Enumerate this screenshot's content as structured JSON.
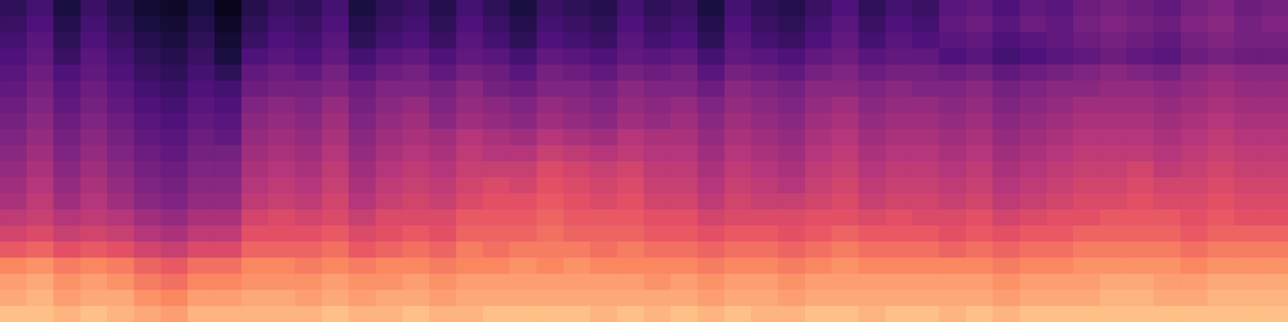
{
  "chart_data": {
    "type": "heatmap",
    "tick_labels": false,
    "value_range": [
      -80,
      0
    ],
    "cells": [
      [
        -66,
        -62,
        -70,
        -64,
        -68,
        -72,
        -74,
        -70,
        -76,
        -68,
        -64,
        -66,
        -62,
        -70,
        -66,
        -64,
        -68,
        -62,
        -66,
        -70,
        -64,
        -66,
        -68,
        -62,
        -66,
        -64,
        -70,
        -62,
        -66,
        -68,
        -64,
        -60,
        -66,
        -62,
        -64,
        -58,
        -56,
        -60,
        -56,
        -58,
        -54,
        -52,
        -54,
        -56,
        -52,
        -50,
        -54,
        -52
      ],
      [
        -64,
        -60,
        -68,
        -62,
        -66,
        -70,
        -72,
        -68,
        -74,
        -66,
        -62,
        -64,
        -60,
        -68,
        -64,
        -62,
        -66,
        -60,
        -64,
        -68,
        -62,
        -64,
        -66,
        -60,
        -64,
        -62,
        -68,
        -60,
        -64,
        -66,
        -62,
        -58,
        -64,
        -60,
        -62,
        -56,
        -54,
        -58,
        -54,
        -56,
        -52,
        -50,
        -52,
        -54,
        -50,
        -48,
        -52,
        -50
      ],
      [
        -62,
        -58,
        -66,
        -60,
        -64,
        -68,
        -70,
        -66,
        -72,
        -64,
        -60,
        -62,
        -58,
        -66,
        -62,
        -60,
        -64,
        -58,
        -62,
        -66,
        -60,
        -62,
        -64,
        -58,
        -62,
        -60,
        -66,
        -58,
        -62,
        -64,
        -60,
        -56,
        -62,
        -58,
        -60,
        -58,
        -56,
        -60,
        -58,
        -56,
        -54,
        -52,
        -54,
        -56,
        -52,
        -50,
        -52,
        -52
      ],
      [
        -60,
        -56,
        -64,
        -58,
        -62,
        -66,
        -68,
        -64,
        -70,
        -60,
        -58,
        -60,
        -56,
        -62,
        -58,
        -56,
        -60,
        -56,
        -58,
        -62,
        -56,
        -58,
        -60,
        -56,
        -58,
        -56,
        -62,
        -56,
        -58,
        -60,
        -56,
        -54,
        -58,
        -56,
        -56,
        -60,
        -58,
        -62,
        -60,
        -58,
        -56,
        -54,
        -56,
        -58,
        -54,
        -52,
        -54,
        -54
      ],
      [
        -58,
        -54,
        -60,
        -56,
        -60,
        -64,
        -66,
        -62,
        -66,
        -56,
        -54,
        -56,
        -52,
        -58,
        -54,
        -52,
        -56,
        -52,
        -54,
        -58,
        -52,
        -54,
        -56,
        -52,
        -54,
        -52,
        -58,
        -52,
        -54,
        -56,
        -52,
        -50,
        -54,
        -52,
        -52,
        -54,
        -52,
        -56,
        -54,
        -52,
        -50,
        -48,
        -50,
        -52,
        -48,
        -46,
        -48,
        -48
      ],
      [
        -56,
        -52,
        -58,
        -54,
        -58,
        -62,
        -64,
        -60,
        -62,
        -54,
        -52,
        -52,
        -50,
        -54,
        -50,
        -50,
        -52,
        -48,
        -52,
        -54,
        -50,
        -50,
        -52,
        -48,
        -50,
        -50,
        -54,
        -48,
        -50,
        -52,
        -48,
        -48,
        -50,
        -48,
        -50,
        -50,
        -48,
        -52,
        -50,
        -48,
        -48,
        -46,
        -46,
        -48,
        -46,
        -44,
        -46,
        -46
      ],
      [
        -54,
        -50,
        -56,
        -52,
        -56,
        -60,
        -62,
        -58,
        -60,
        -50,
        -48,
        -50,
        -46,
        -52,
        -48,
        -46,
        -50,
        -46,
        -48,
        -50,
        -46,
        -48,
        -50,
        -46,
        -48,
        -46,
        -50,
        -46,
        -48,
        -50,
        -46,
        -44,
        -48,
        -46,
        -46,
        -48,
        -46,
        -50,
        -48,
        -46,
        -44,
        -44,
        -44,
        -46,
        -44,
        -42,
        -44,
        -44
      ],
      [
        -52,
        -48,
        -54,
        -50,
        -54,
        -58,
        -60,
        -56,
        -58,
        -48,
        -46,
        -48,
        -44,
        -50,
        -46,
        -44,
        -48,
        -44,
        -46,
        -48,
        -44,
        -46,
        -48,
        -44,
        -46,
        -44,
        -48,
        -44,
        -46,
        -48,
        -44,
        -42,
        -46,
        -44,
        -44,
        -46,
        -44,
        -48,
        -46,
        -44,
        -42,
        -42,
        -42,
        -44,
        -42,
        -40,
        -42,
        -42
      ],
      [
        -50,
        -46,
        -52,
        -48,
        -52,
        -56,
        -58,
        -54,
        -56,
        -46,
        -44,
        -46,
        -42,
        -48,
        -44,
        -42,
        -44,
        -40,
        -42,
        -44,
        -40,
        -42,
        -44,
        -40,
        -42,
        -42,
        -46,
        -42,
        -44,
        -46,
        -42,
        -40,
        -44,
        -42,
        -42,
        -44,
        -42,
        -46,
        -44,
        -42,
        -40,
        -40,
        -40,
        -42,
        -40,
        -38,
        -40,
        -40
      ],
      [
        -48,
        -44,
        -50,
        -46,
        -50,
        -54,
        -56,
        -52,
        -52,
        -44,
        -42,
        -44,
        -40,
        -46,
        -42,
        -40,
        -42,
        -38,
        -40,
        -40,
        -36,
        -38,
        -40,
        -38,
        -40,
        -40,
        -44,
        -40,
        -42,
        -44,
        -40,
        -38,
        -42,
        -40,
        -40,
        -42,
        -40,
        -44,
        -42,
        -40,
        -38,
        -38,
        -38,
        -40,
        -38,
        -36,
        -38,
        -38
      ],
      [
        -46,
        -42,
        -48,
        -44,
        -48,
        -52,
        -54,
        -50,
        -50,
        -42,
        -40,
        -42,
        -38,
        -44,
        -40,
        -38,
        -40,
        -36,
        -36,
        -36,
        -32,
        -34,
        -36,
        -34,
        -38,
        -38,
        -42,
        -38,
        -40,
        -42,
        -38,
        -36,
        -40,
        -38,
        -38,
        -40,
        -38,
        -42,
        -40,
        -38,
        -36,
        -36,
        -34,
        -38,
        -36,
        -34,
        -36,
        -36
      ],
      [
        -44,
        -40,
        -46,
        -42,
        -46,
        -50,
        -52,
        -48,
        -48,
        -40,
        -38,
        -40,
        -36,
        -42,
        -38,
        -36,
        -38,
        -34,
        -32,
        -34,
        -30,
        -32,
        -34,
        -32,
        -36,
        -36,
        -40,
        -36,
        -38,
        -40,
        -36,
        -34,
        -38,
        -36,
        -36,
        -38,
        -36,
        -40,
        -38,
        -36,
        -34,
        -34,
        -32,
        -34,
        -34,
        -32,
        -34,
        -34
      ],
      [
        -42,
        -38,
        -44,
        -40,
        -44,
        -48,
        -50,
        -46,
        -46,
        -38,
        -36,
        -38,
        -34,
        -40,
        -36,
        -34,
        -36,
        -32,
        -30,
        -30,
        -28,
        -30,
        -32,
        -30,
        -34,
        -34,
        -38,
        -34,
        -36,
        -36,
        -34,
        -32,
        -36,
        -34,
        -34,
        -36,
        -34,
        -38,
        -36,
        -34,
        -32,
        -32,
        -30,
        -32,
        -32,
        -30,
        -32,
        -32
      ],
      [
        -38,
        -36,
        -40,
        -38,
        -40,
        -44,
        -46,
        -42,
        -42,
        -34,
        -32,
        -34,
        -32,
        -36,
        -32,
        -32,
        -32,
        -28,
        -28,
        -28,
        -26,
        -28,
        -28,
        -28,
        -30,
        -30,
        -34,
        -32,
        -32,
        -32,
        -30,
        -30,
        -32,
        -30,
        -32,
        -32,
        -30,
        -34,
        -32,
        -30,
        -30,
        -28,
        -28,
        -28,
        -30,
        -28,
        -30,
        -30
      ],
      [
        -34,
        -32,
        -36,
        -34,
        -36,
        -40,
        -42,
        -38,
        -38,
        -30,
        -30,
        -30,
        -28,
        -32,
        -30,
        -28,
        -30,
        -26,
        -26,
        -26,
        -24,
        -26,
        -26,
        -26,
        -28,
        -28,
        -30,
        -28,
        -28,
        -30,
        -28,
        -26,
        -28,
        -28,
        -28,
        -30,
        -28,
        -30,
        -28,
        -28,
        -26,
        -26,
        -26,
        -26,
        -28,
        -26,
        -26,
        -26
      ],
      [
        -28,
        -26,
        -30,
        -28,
        -30,
        -34,
        -36,
        -32,
        -32,
        -26,
        -26,
        -26,
        -24,
        -28,
        -26,
        -24,
        -26,
        -22,
        -24,
        -22,
        -22,
        -22,
        -24,
        -22,
        -24,
        -24,
        -26,
        -24,
        -24,
        -26,
        -24,
        -22,
        -24,
        -24,
        -24,
        -26,
        -24,
        -26,
        -24,
        -24,
        -22,
        -22,
        -22,
        -22,
        -24,
        -22,
        -22,
        -22
      ],
      [
        -20,
        -18,
        -22,
        -20,
        -22,
        -26,
        -28,
        -24,
        -24,
        -20,
        -20,
        -22,
        -20,
        -22,
        -20,
        -20,
        -22,
        -20,
        -20,
        -18,
        -20,
        -18,
        -20,
        -20,
        -20,
        -20,
        -22,
        -20,
        -20,
        -22,
        -20,
        -18,
        -20,
        -20,
        -20,
        -20,
        -20,
        -22,
        -20,
        -20,
        -18,
        -18,
        -18,
        -18,
        -20,
        -18,
        -18,
        -18
      ],
      [
        -16,
        -14,
        -18,
        -16,
        -18,
        -22,
        -24,
        -20,
        -20,
        -18,
        -18,
        -18,
        -16,
        -18,
        -18,
        -16,
        -18,
        -16,
        -16,
        -16,
        -16,
        -16,
        -16,
        -16,
        -18,
        -16,
        -18,
        -16,
        -16,
        -18,
        -16,
        -16,
        -16,
        -16,
        -16,
        -16,
        -16,
        -18,
        -16,
        -16,
        -16,
        -14,
        -14,
        -16,
        -16,
        -14,
        -14,
        -14
      ],
      [
        -14,
        -12,
        -16,
        -14,
        -14,
        -18,
        -20,
        -16,
        -16,
        -14,
        -14,
        -16,
        -14,
        -16,
        -14,
        -14,
        -16,
        -14,
        -14,
        -14,
        -14,
        -14,
        -14,
        -14,
        -14,
        -14,
        -16,
        -14,
        -14,
        -16,
        -14,
        -14,
        -14,
        -14,
        -14,
        -14,
        -14,
        -16,
        -14,
        -14,
        -14,
        -12,
        -12,
        -14,
        -14,
        -12,
        -12,
        -12
      ],
      [
        -10,
        -10,
        -12,
        -10,
        -12,
        -14,
        -16,
        -12,
        -12,
        -12,
        -12,
        -12,
        -10,
        -12,
        -12,
        -10,
        -12,
        -12,
        -10,
        -10,
        -10,
        -10,
        -12,
        -10,
        -12,
        -10,
        -12,
        -10,
        -12,
        -12,
        -10,
        -10,
        -12,
        -10,
        -10,
        -12,
        -10,
        -12,
        -10,
        -10,
        -10,
        -10,
        -10,
        -10,
        -10,
        -10,
        -10,
        -10
      ]
    ]
  }
}
